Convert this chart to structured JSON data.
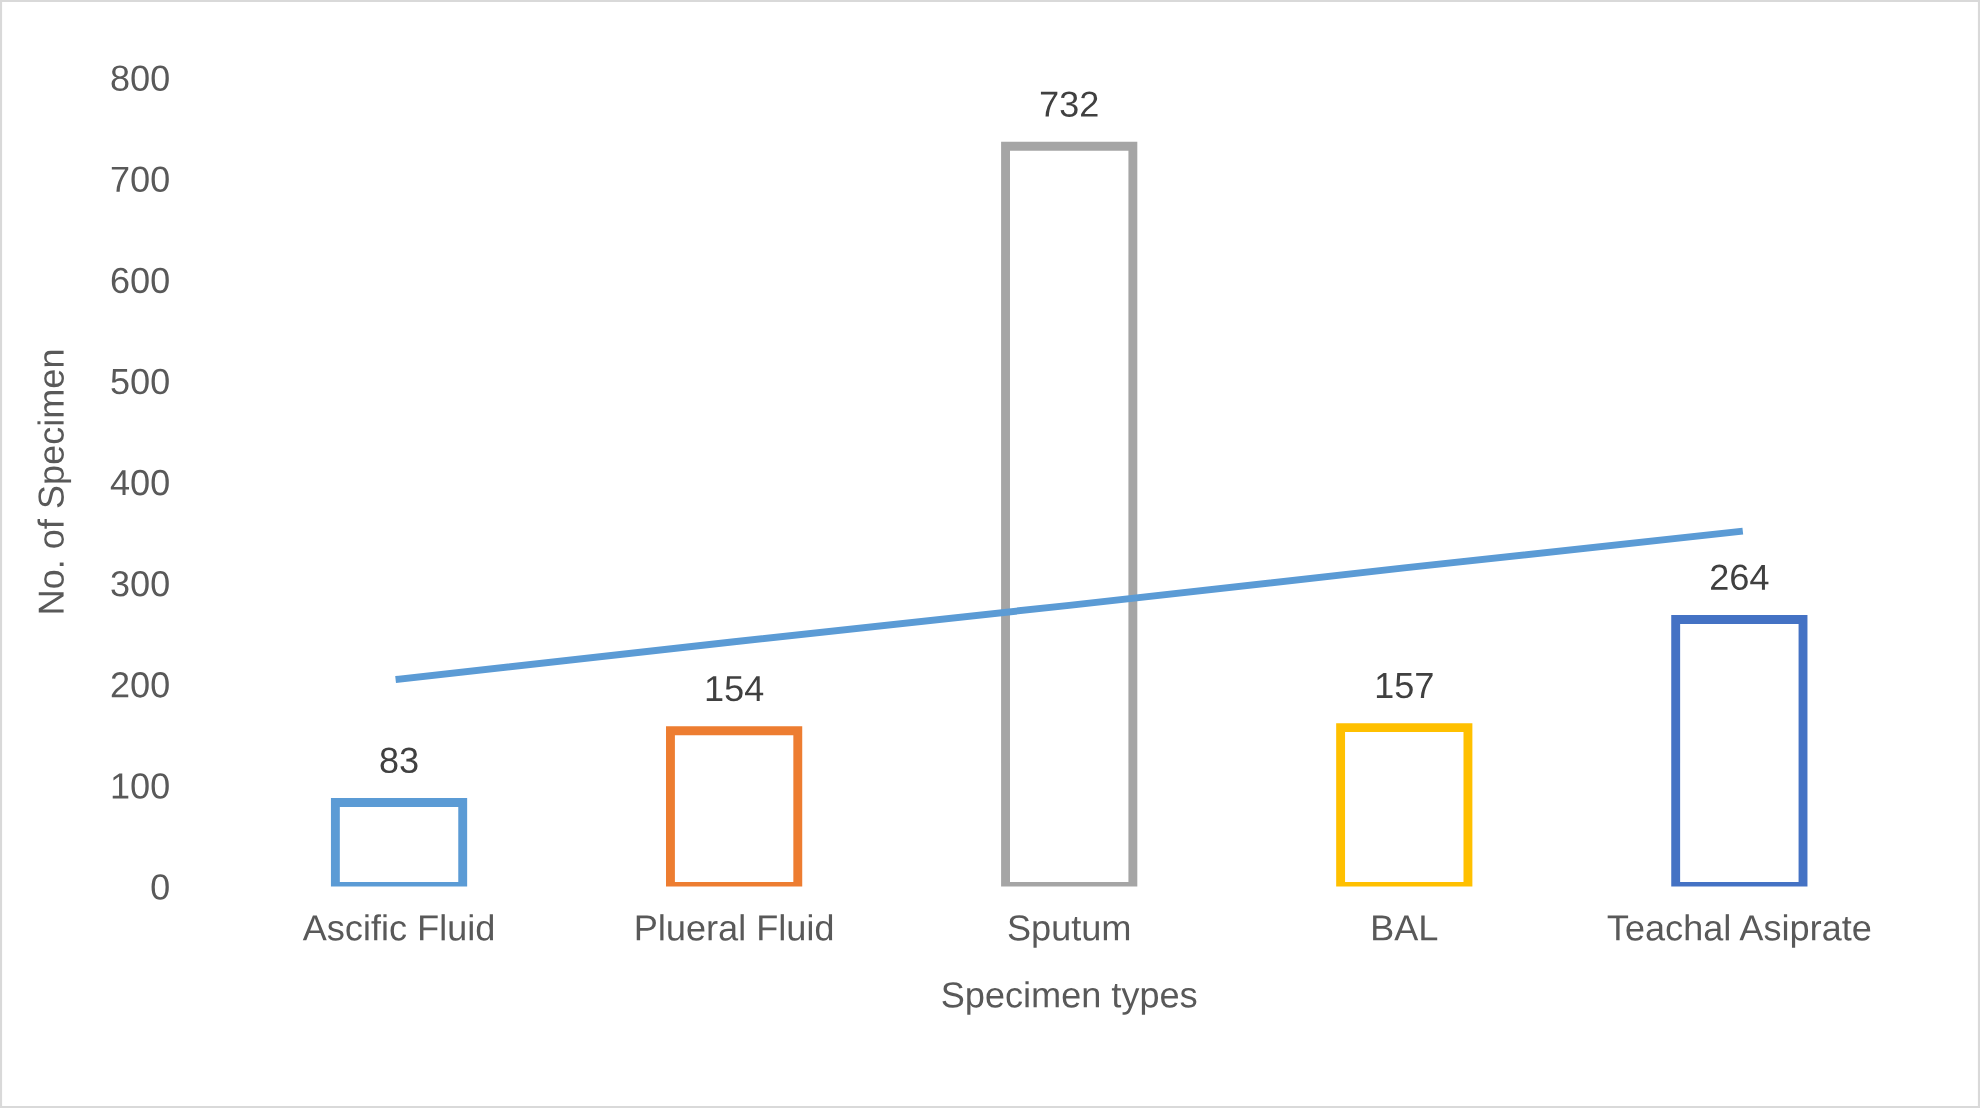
{
  "chart_data": {
    "type": "bar",
    "xlabel": "Specimen types",
    "ylabel": "No. of Specimen",
    "categories": [
      "Ascific Fluid",
      "Plueral Fluid",
      "Sputum",
      "BAL",
      "Teachal Asiprate"
    ],
    "series": [
      {
        "colors": [
          "#5b9bd5",
          "#ed7d31",
          "#a5a5a5",
          "#ffc000",
          "#4472c4"
        ],
        "values": [
          83,
          154,
          732,
          157,
          264
        ],
        "value_labels": [
          "83",
          "154",
          "732",
          "157",
          "264"
        ]
      },
      {
        "type": "line",
        "color": "#5b9bd5",
        "values": [
          205,
          242,
          278,
          315,
          351
        ]
      }
    ],
    "ylim": [
      0,
      800
    ],
    "yticks": [
      0,
      100,
      200,
      300,
      400,
      500,
      600,
      700,
      800
    ],
    "grid": false
  }
}
